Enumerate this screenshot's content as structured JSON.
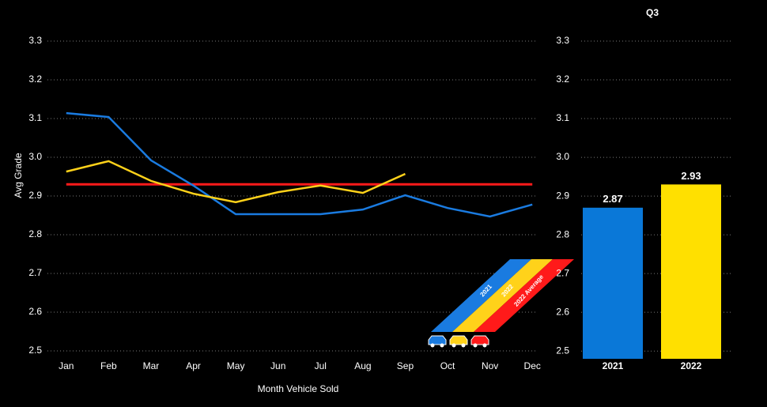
{
  "chart_data": [
    {
      "type": "line",
      "categories": [
        "Jan",
        "Feb",
        "Mar",
        "Apr",
        "May",
        "Jun",
        "Jul",
        "Aug",
        "Sep",
        "Oct",
        "Nov",
        "Dec"
      ],
      "series": [
        {
          "name": "2021",
          "color": "#1a7be0",
          "values": [
            3.114,
            3.104,
            2.992,
            2.927,
            2.853,
            2.853,
            2.853,
            2.865,
            2.902,
            2.869,
            2.847,
            2.878
          ]
        },
        {
          "name": "2022",
          "color": "#ffd21a",
          "values": [
            2.963,
            2.99,
            2.939,
            2.906,
            2.884,
            2.91,
            2.927,
            2.908,
            2.957,
            null,
            null,
            null
          ]
        },
        {
          "name": "2022 Average",
          "color": "#ff1a1a",
          "values": [
            2.93,
            2.93,
            2.93,
            2.93,
            2.93,
            2.93,
            2.93,
            2.93,
            2.93,
            2.93,
            2.93,
            2.93
          ]
        }
      ],
      "y_label": "Avg Grade",
      "x_label": "Month Vehicle Sold",
      "ylim": [
        2.5,
        3.3
      ],
      "yticks": [
        2.5,
        2.6,
        2.7,
        2.8,
        2.9,
        {
          "value": 3,
          "label": "3.0"
        },
        3.1,
        3.2,
        3.3
      ],
      "grid": true
    },
    {
      "type": "bar",
      "title": "Q3",
      "categories": [
        "2021",
        "2022"
      ],
      "values": [
        2.87,
        2.93
      ],
      "colors": [
        "#0a78d8",
        "#ffe000"
      ],
      "ylim": [
        2.48,
        3.3
      ],
      "yticks": [
        2.5,
        2.6,
        2.7,
        2.8,
        2.9,
        {
          "value": 3,
          "label": "3.0"
        },
        3.1,
        3.2,
        3.3
      ],
      "grid": true
    }
  ]
}
